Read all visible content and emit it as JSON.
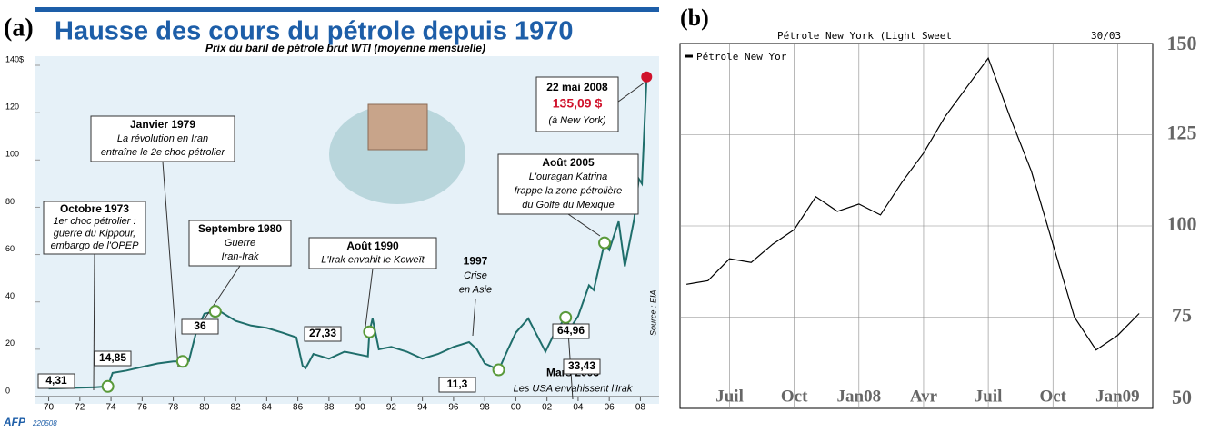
{
  "chart_data": [
    {
      "type": "line",
      "panel_label": "(a)",
      "title": "Hausse des cours du pétrole depuis 1970",
      "subtitle": "Prix du baril de pétrole brut WTI (moyenne mensuelle)",
      "x": [
        1970,
        1973,
        1973.8,
        1974.1,
        1975,
        1976,
        1977,
        1978,
        1978.6,
        1979,
        1979.5,
        1980,
        1980.7,
        1981,
        1982,
        1983,
        1984,
        1985,
        1985.9,
        1986.3,
        1986.5,
        1987,
        1988,
        1989,
        1990.5,
        1990.6,
        1990.8,
        1991.2,
        1992,
        1993,
        1994,
        1995,
        1996,
        1997,
        1997.5,
        1998,
        1998.9,
        1999.5,
        2000,
        2000.8,
        2001.9,
        2002.5,
        2003.2,
        2003.5,
        2004,
        2004.7,
        2005,
        2005.7,
        2006,
        2006.6,
        2007,
        2007.6,
        2007.9,
        2008.1,
        2008.4
      ],
      "values": [
        3.4,
        3.9,
        4.31,
        10,
        11,
        12.5,
        14,
        14.85,
        14.85,
        15,
        28,
        35,
        36,
        36,
        32,
        30,
        29,
        27,
        25,
        13,
        12,
        18,
        16,
        19,
        17,
        27.33,
        33,
        20,
        21,
        19,
        16,
        18,
        21,
        23,
        20,
        14,
        11.3,
        20,
        27,
        33,
        19,
        27,
        33.43,
        29,
        34,
        47,
        45,
        64.96,
        62,
        74,
        55,
        75,
        92,
        90,
        135.09
      ],
      "color": "#1f6e6b",
      "xlim": [
        1969.5,
        2008.5
      ],
      "xticks": [
        {
          "value": 1970,
          "label": "70"
        },
        {
          "value": 1972,
          "label": "72"
        },
        {
          "value": 1974,
          "label": "74"
        },
        {
          "value": 1976,
          "label": "76"
        },
        {
          "value": 1978,
          "label": "78"
        },
        {
          "value": 1980,
          "label": "80"
        },
        {
          "value": 1982,
          "label": "82"
        },
        {
          "value": 1984,
          "label": "84"
        },
        {
          "value": 1986,
          "label": "86"
        },
        {
          "value": 1988,
          "label": "88"
        },
        {
          "value": 1990,
          "label": "90"
        },
        {
          "value": 1992,
          "label": "92"
        },
        {
          "value": 1994,
          "label": "94"
        },
        {
          "value": 1996,
          "label": "96"
        },
        {
          "value": 1998,
          "label": "98"
        },
        {
          "value": 2000,
          "label": "00"
        },
        {
          "value": 2002,
          "label": "02"
        },
        {
          "value": 2004,
          "label": "04"
        },
        {
          "value": 2006,
          "label": "06"
        },
        {
          "value": 2008,
          "label": "08"
        }
      ],
      "ylim": [
        0,
        140
      ],
      "yticks": [
        0,
        20,
        40,
        60,
        80,
        100,
        120,
        {
          "value": 140,
          "label": "140$"
        }
      ],
      "markers": {
        "x": [
          1973.8,
          1978.6,
          1980.7,
          1990.6,
          1998.9,
          2003.2,
          2005.7,
          2008.4
        ],
        "values": [
          4.31,
          14.85,
          36,
          27.33,
          11.3,
          33.43,
          64.96,
          135.09
        ],
        "value_labels": [
          "4,31",
          "14,85",
          "36",
          "27,33",
          "11,3",
          "33,43",
          "64,96",
          "135,09 $"
        ]
      },
      "annotations": [
        {
          "lines": [
            "Octobre 1973",
            "1er choc pétrolier :",
            "guerre du Kippour,",
            "embargo de l'OPEP"
          ]
        },
        {
          "lines": [
            "Janvier 1979",
            "La révolution en Iran",
            "entraîne le 2e choc pétrolier"
          ]
        },
        {
          "lines": [
            "Septembre 1980",
            "Guerre",
            "Iran-Irak"
          ]
        },
        {
          "lines": [
            "Août 1990",
            "L'Irak envahit le Koweït"
          ]
        },
        {
          "lines": [
            "1997",
            "Crise",
            "en Asie"
          ]
        },
        {
          "lines": [
            "Août 2005",
            "L'ouragan Katrina",
            "frappe la zone pétrolière",
            "du Golfe du Mexique"
          ]
        },
        {
          "lines": [
            "Mars 2003",
            "Les USA envahissent l'Irak"
          ]
        },
        {
          "lines": [
            "22 mai 2008",
            "(à New York)"
          ]
        }
      ],
      "source": "Source : EIA",
      "logo": "AFP",
      "code": "220508"
    },
    {
      "type": "line",
      "panel_label": "(b)",
      "title": "Pétrole New York (Light Sweet",
      "date": "30/03",
      "x": [
        "2007-05",
        "2007-06",
        "2007-07",
        "2007-08",
        "2007-09",
        "2007-10",
        "2007-11",
        "2007-12",
        "2008-01",
        "2008-02",
        "2008-03",
        "2008-04",
        "2008-05",
        "2008-06",
        "2008-07",
        "2008-08",
        "2008-09",
        "2008-10",
        "2008-11",
        "2008-12",
        "2009-01",
        "2009-02"
      ],
      "series": [
        {
          "name": "Pétrole New Yor",
          "color": "#000000",
          "values": [
            84,
            85,
            91,
            90,
            95,
            99,
            108,
            104,
            106,
            103,
            112,
            120,
            130,
            138,
            146,
            130,
            115,
            95,
            75,
            66,
            70,
            76
          ]
        }
      ],
      "ylim": [
        50,
        150
      ],
      "yticks": [
        50,
        75,
        100,
        125,
        150
      ],
      "xticks": [
        {
          "value": "2007-07",
          "label": "Juil"
        },
        {
          "value": "2007-10",
          "label": "Oct"
        },
        {
          "value": "2008-01",
          "label": "Jan08"
        },
        {
          "value": "2008-04",
          "label": "Avr"
        },
        {
          "value": "2008-07",
          "label": "Juil"
        },
        {
          "value": "2008-10",
          "label": "Oct"
        },
        {
          "value": "2009-01",
          "label": "Jan09"
        }
      ],
      "grid": true
    }
  ]
}
